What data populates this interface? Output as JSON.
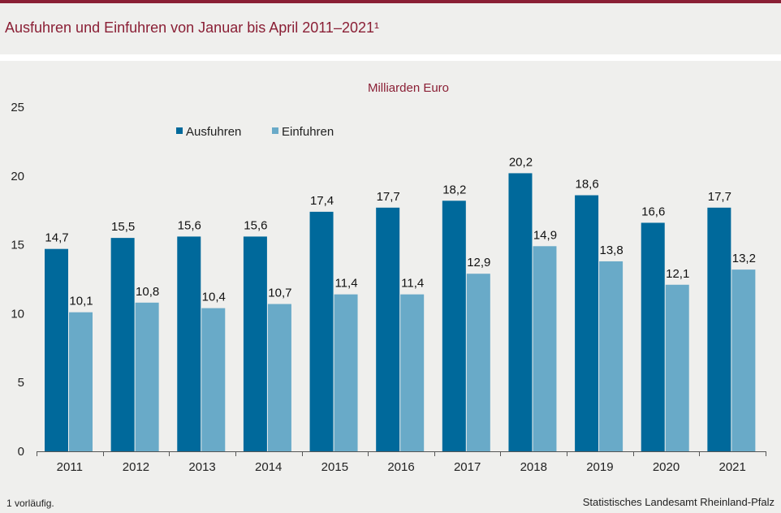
{
  "title": "Ausfuhren und Einfuhren von Januar bis April 2011–2021¹",
  "footnote": "1 vorläufig.",
  "source": "Statistisches Landesamt Rheinland-Pfalz",
  "colors": {
    "accent": "#8a1f35",
    "series1": "#00699b",
    "series2": "#69aac8"
  },
  "chart_data": {
    "type": "bar",
    "unit_label": "Milliarden Euro",
    "categories": [
      "2011",
      "2012",
      "2013",
      "2014",
      "2015",
      "2016",
      "2017",
      "2018",
      "2019",
      "2020",
      "2021"
    ],
    "series": [
      {
        "name": "Ausfuhren",
        "color": "#00699b",
        "values": [
          14.7,
          15.5,
          15.6,
          15.6,
          17.4,
          17.7,
          18.2,
          20.2,
          18.6,
          16.6,
          17.7
        ],
        "labels": [
          "14,7",
          "15,5",
          "15,6",
          "15,6",
          "17,4",
          "17,7",
          "18,2",
          "20,2",
          "18,6",
          "16,6",
          "17,7"
        ]
      },
      {
        "name": "Einfuhren",
        "color": "#69aac8",
        "values": [
          10.1,
          10.8,
          10.4,
          10.7,
          11.4,
          11.4,
          12.9,
          14.9,
          13.8,
          12.1,
          13.2
        ],
        "labels": [
          "10,1",
          "10,8",
          "10,4",
          "10,7",
          "11,4",
          "11,4",
          "12,9",
          "14,9",
          "13,8",
          "12,1",
          "13,2"
        ]
      }
    ],
    "ylim": [
      0,
      25
    ],
    "yticks": [
      0,
      5,
      10,
      15,
      20,
      25
    ],
    "grid": false,
    "legend": "top-left"
  }
}
